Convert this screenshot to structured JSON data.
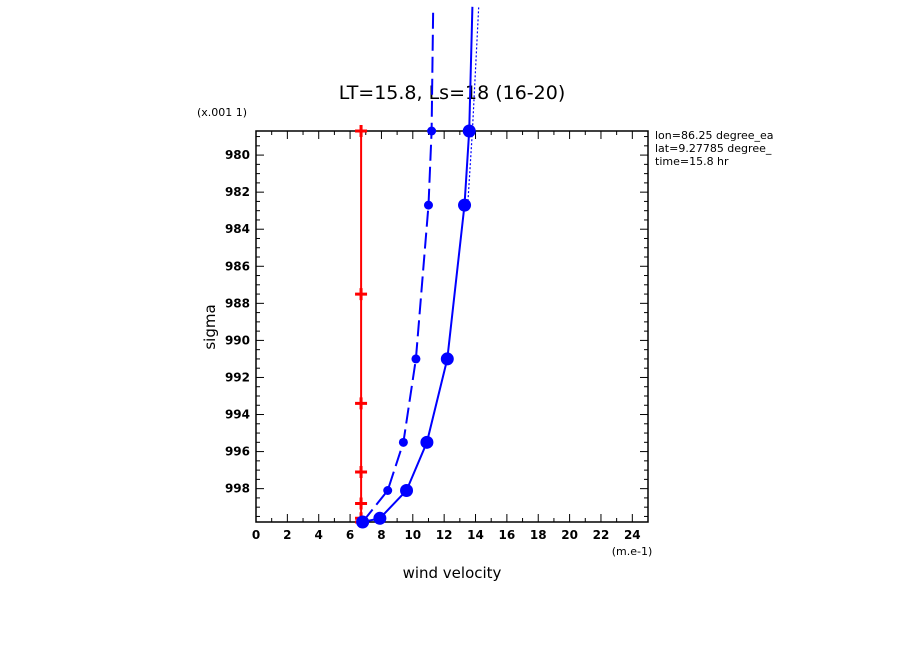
{
  "chart_data": {
    "type": "line",
    "title": "LT=15.8, Ls=18 (16-20)",
    "xlabel": "wind velocity",
    "ylabel": "sigma",
    "x_unit": "(m.e-1)",
    "y_scale_note": "(x.001 1)",
    "xlim": [
      0,
      25
    ],
    "ylim": [
      999.8,
      978.7
    ],
    "x_ticks": [
      0,
      2,
      4,
      6,
      8,
      10,
      12,
      14,
      16,
      18,
      20,
      22,
      24
    ],
    "y_ticks": [
      980,
      982,
      984,
      986,
      988,
      990,
      992,
      994,
      996,
      998
    ],
    "info_lines": [
      "lon=86.25 degree_ea",
      "lat=9.27785 degree_",
      "time=15.8 hr"
    ],
    "grid": false,
    "series": [
      {
        "color": "#ff0000",
        "style": "solid",
        "marker": "plus",
        "points": [
          [
            6.7,
            978.7
          ],
          [
            6.7,
            987.5
          ],
          [
            6.7,
            993.4
          ],
          [
            6.7,
            997.1
          ],
          [
            6.7,
            998.8
          ],
          [
            6.7,
            999.6
          ],
          [
            6.7,
            999.8
          ]
        ]
      },
      {
        "color": "#0000ff",
        "style": "longdash",
        "marker": "circle-small",
        "points": [
          [
            6.8,
            999.8
          ],
          [
            8.4,
            998.1
          ],
          [
            9.4,
            995.5
          ],
          [
            10.2,
            991.0
          ],
          [
            11.0,
            982.7
          ],
          [
            11.2,
            978.7
          ],
          [
            11.3,
            972.0
          ]
        ]
      },
      {
        "color": "#0000ff",
        "style": "solid",
        "marker": "circle-large",
        "points": [
          [
            6.8,
            999.8
          ],
          [
            7.9,
            999.6
          ],
          [
            9.6,
            998.1
          ],
          [
            10.9,
            995.5
          ],
          [
            12.2,
            991.0
          ],
          [
            13.3,
            982.7
          ],
          [
            13.6,
            978.7
          ],
          [
            13.8,
            972.0
          ]
        ]
      },
      {
        "color": "#0000ff",
        "style": "dotted",
        "marker": "none",
        "points": [
          [
            13.5,
            982.7
          ],
          [
            13.8,
            978.7
          ],
          [
            14.2,
            972.0
          ]
        ]
      }
    ]
  }
}
